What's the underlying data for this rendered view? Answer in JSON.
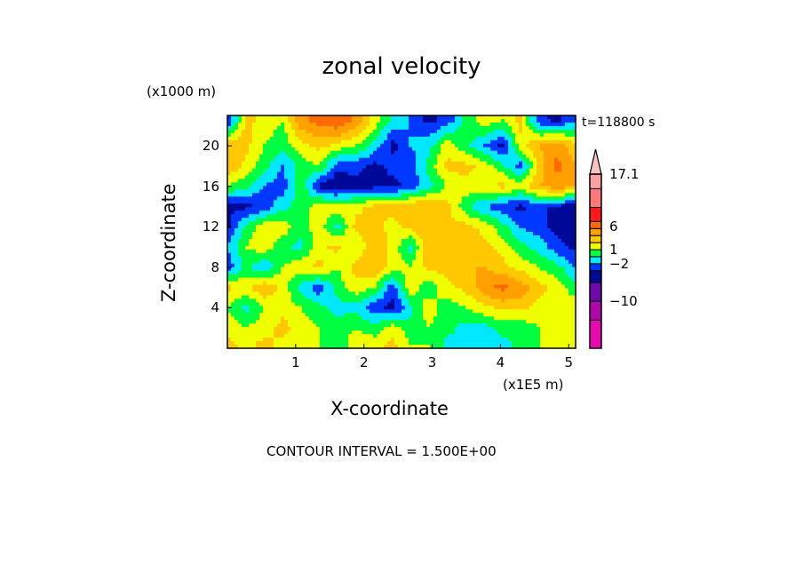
{
  "chart_data": {
    "type": "heatmap",
    "subtype": "filled-contour",
    "title": "zonal velocity",
    "xlabel": "X-coordinate",
    "ylabel": "Z-coordinate",
    "x_unit": "(x1E5 m)",
    "y_unit": "(x1000 m)",
    "time_label": "t=118800 s",
    "footer": "CONTOUR INTERVAL = 1.500E+00",
    "xlim": [
      0,
      5.1
    ],
    "ylim": [
      0,
      23
    ],
    "xticks": [
      {
        "v": 1,
        "label": "1"
      },
      {
        "v": 2,
        "label": "2"
      },
      {
        "v": 3,
        "label": "3"
      },
      {
        "v": 4,
        "label": "4"
      },
      {
        "v": 5,
        "label": "5"
      }
    ],
    "yticks": [
      {
        "v": 4,
        "label": "4"
      },
      {
        "v": 8,
        "label": "8"
      },
      {
        "v": 12,
        "label": "12"
      },
      {
        "v": 16,
        "label": "16"
      },
      {
        "v": 20,
        "label": "20"
      }
    ],
    "colorbar": {
      "segments": [
        {
          "color": "#e808b0",
          "lo": -20,
          "hi": -14
        },
        {
          "color": "#b008a8",
          "lo": -14,
          "hi": -10
        },
        {
          "color": "#7008a8",
          "lo": -10,
          "hi": -6
        },
        {
          "color": "#000898",
          "lo": -6,
          "hi": -3.5
        },
        {
          "color": "#0038ff",
          "lo": -3.5,
          "hi": -2
        },
        {
          "color": "#00e8ff",
          "lo": -2,
          "hi": -0.5
        },
        {
          "color": "#00ff40",
          "lo": -0.5,
          "hi": 1
        },
        {
          "color": "#f0ff00",
          "lo": 1,
          "hi": 2.5
        },
        {
          "color": "#ffc800",
          "lo": 2.5,
          "hi": 4
        },
        {
          "color": "#ffa000",
          "lo": 4,
          "hi": 5.5
        },
        {
          "color": "#ff6a00",
          "lo": 5.5,
          "hi": 7
        },
        {
          "color": "#ff1818",
          "lo": 7,
          "hi": 10
        },
        {
          "color": "#ff7878",
          "lo": 10,
          "hi": 14
        },
        {
          "color": "#ffa0a0",
          "lo": 14,
          "hi": 17.1
        }
      ],
      "extend_color": "#ffc0c0",
      "labels": [
        {
          "v": 17.1,
          "label": "17.1"
        },
        {
          "v": 6,
          "label": "6"
        },
        {
          "v": 1,
          "label": "1"
        },
        {
          "v": -2,
          "label": "−2"
        },
        {
          "v": -10,
          "label": "−10"
        }
      ]
    },
    "grid_x": [
      0,
      0.27,
      0.54,
      0.81,
      1.07,
      1.34,
      1.61,
      1.88,
      2.15,
      2.42,
      2.68,
      2.95,
      3.22,
      3.49,
      3.76,
      4.03,
      4.29,
      4.56,
      4.83,
      5.1
    ],
    "grid_z": [
      22.5,
      20,
      18,
      16,
      14,
      12,
      10,
      8,
      6,
      4,
      2,
      0.3
    ],
    "values": [
      [
        -4,
        3,
        2,
        1,
        5,
        6,
        7,
        5,
        2,
        -1,
        -2,
        -4,
        -3,
        0,
        2,
        1,
        3,
        -3,
        -4,
        -2
      ],
      [
        4,
        3,
        1,
        0,
        2,
        3,
        2,
        1,
        -1,
        -4,
        -2,
        -1,
        2,
        0,
        -2,
        -4,
        2,
        4,
        5,
        3
      ],
      [
        4,
        2,
        0,
        -2,
        0,
        1,
        -3,
        -3,
        -4,
        -3,
        -3,
        0,
        3,
        3,
        2,
        0,
        -3,
        3,
        6,
        4
      ],
      [
        1,
        0,
        -2,
        -3,
        1,
        -4,
        -5,
        -4,
        -4,
        -4,
        -3,
        -1,
        1,
        2,
        2,
        3,
        2,
        4,
        5,
        4
      ],
      [
        -4,
        -4,
        -3,
        -1,
        0,
        2,
        2,
        2,
        3,
        3,
        4,
        4,
        3,
        0,
        -2,
        -3,
        -4,
        -3,
        -4,
        -4
      ],
      [
        -4,
        0,
        2,
        2,
        0,
        2,
        -1,
        3,
        3,
        2,
        3,
        4,
        3,
        3,
        2,
        0,
        -2,
        -3,
        -4,
        -5
      ],
      [
        -2,
        1,
        2,
        0,
        -1,
        2,
        3,
        1,
        4,
        2,
        -1,
        4,
        4,
        4,
        3,
        2,
        0,
        -1,
        -3,
        -4
      ],
      [
        -3,
        0,
        -2,
        1,
        2,
        3,
        1,
        3,
        4,
        2,
        1,
        3,
        3,
        4,
        4,
        3,
        2,
        1,
        0,
        -2
      ],
      [
        3,
        2,
        4,
        2,
        -1,
        -3,
        0,
        2,
        1,
        -3,
        2,
        0,
        2,
        3,
        5,
        6,
        5,
        3,
        2,
        0
      ],
      [
        1,
        -1,
        1,
        2,
        1,
        0,
        -1,
        -1,
        -3,
        -4,
        -1,
        2,
        0,
        1,
        2,
        3,
        3,
        2,
        1,
        2
      ],
      [
        2,
        1,
        2,
        3,
        2,
        1,
        0,
        1,
        0,
        2,
        0,
        1,
        0,
        -1,
        -1,
        0,
        0,
        1,
        1,
        2
      ],
      [
        3,
        2,
        3,
        2,
        2,
        1,
        0,
        2,
        2,
        3,
        1,
        1,
        -1,
        -1,
        -1,
        -1,
        0,
        1,
        2,
        2
      ]
    ]
  }
}
